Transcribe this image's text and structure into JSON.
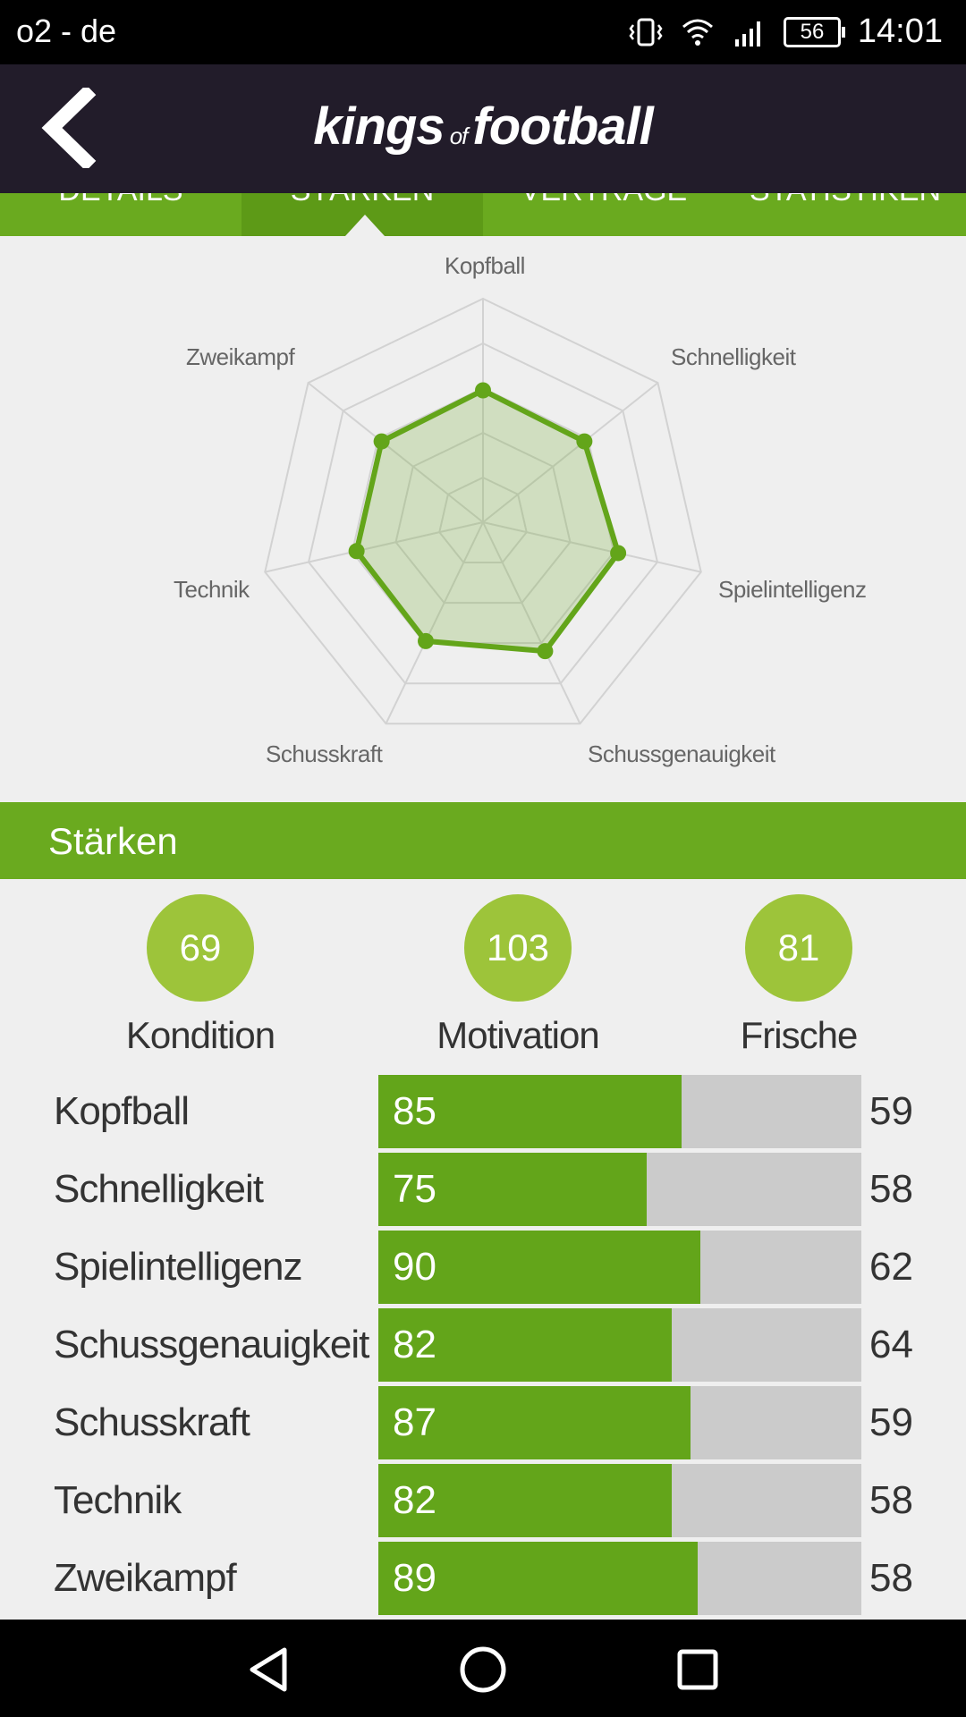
{
  "status_bar": {
    "carrier": "o2 - de",
    "battery": "56",
    "time": "14:01"
  },
  "header": {
    "logo_part1": "kings",
    "logo_of": "of",
    "logo_part2": "football"
  },
  "tabs": [
    {
      "label": "DETAILS",
      "active": false
    },
    {
      "label": "STÄRKEN",
      "active": true
    },
    {
      "label": "VERTRÄGE",
      "active": false
    },
    {
      "label": "STATISTIKEN",
      "active": false
    }
  ],
  "chart_data": {
    "type": "radar",
    "axes": [
      "Kopfball",
      "Schnelligkeit",
      "Spielintelligenz",
      "Schussgenauigkeit",
      "Schusskraft",
      "Technik",
      "Zweikampf"
    ],
    "values": [
      59,
      58,
      62,
      64,
      59,
      58,
      58
    ],
    "rings": 5,
    "range": [
      0,
      100
    ],
    "color": "#63a51a"
  },
  "section": {
    "title": "Stärken"
  },
  "summary": [
    {
      "value": "69",
      "label": "Kondition"
    },
    {
      "value": "103",
      "label": "Motivation"
    },
    {
      "value": "81",
      "label": "Frische"
    }
  ],
  "stats": [
    {
      "label": "Kopfball",
      "value": "85",
      "average": "59",
      "fraction": 0.627
    },
    {
      "label": "Schnelligkeit",
      "value": "75",
      "average": "58",
      "fraction": 0.555
    },
    {
      "label": "Spielintelligenz",
      "value": "90",
      "average": "62",
      "fraction": 0.666
    },
    {
      "label": "Schussgenauigkeit",
      "value": "82",
      "average": "64",
      "fraction": 0.607
    },
    {
      "label": "Schusskraft",
      "value": "87",
      "average": "59",
      "fraction": 0.646
    },
    {
      "label": "Technik",
      "value": "82",
      "average": "58",
      "fraction": 0.607
    },
    {
      "label": "Zweikampf",
      "value": "89",
      "average": "58",
      "fraction": 0.661
    }
  ],
  "colors": {
    "accent": "#6aaa1f",
    "bar": "#63a51a",
    "circle": "#9dc43a",
    "header_bg": "#221c2a"
  }
}
